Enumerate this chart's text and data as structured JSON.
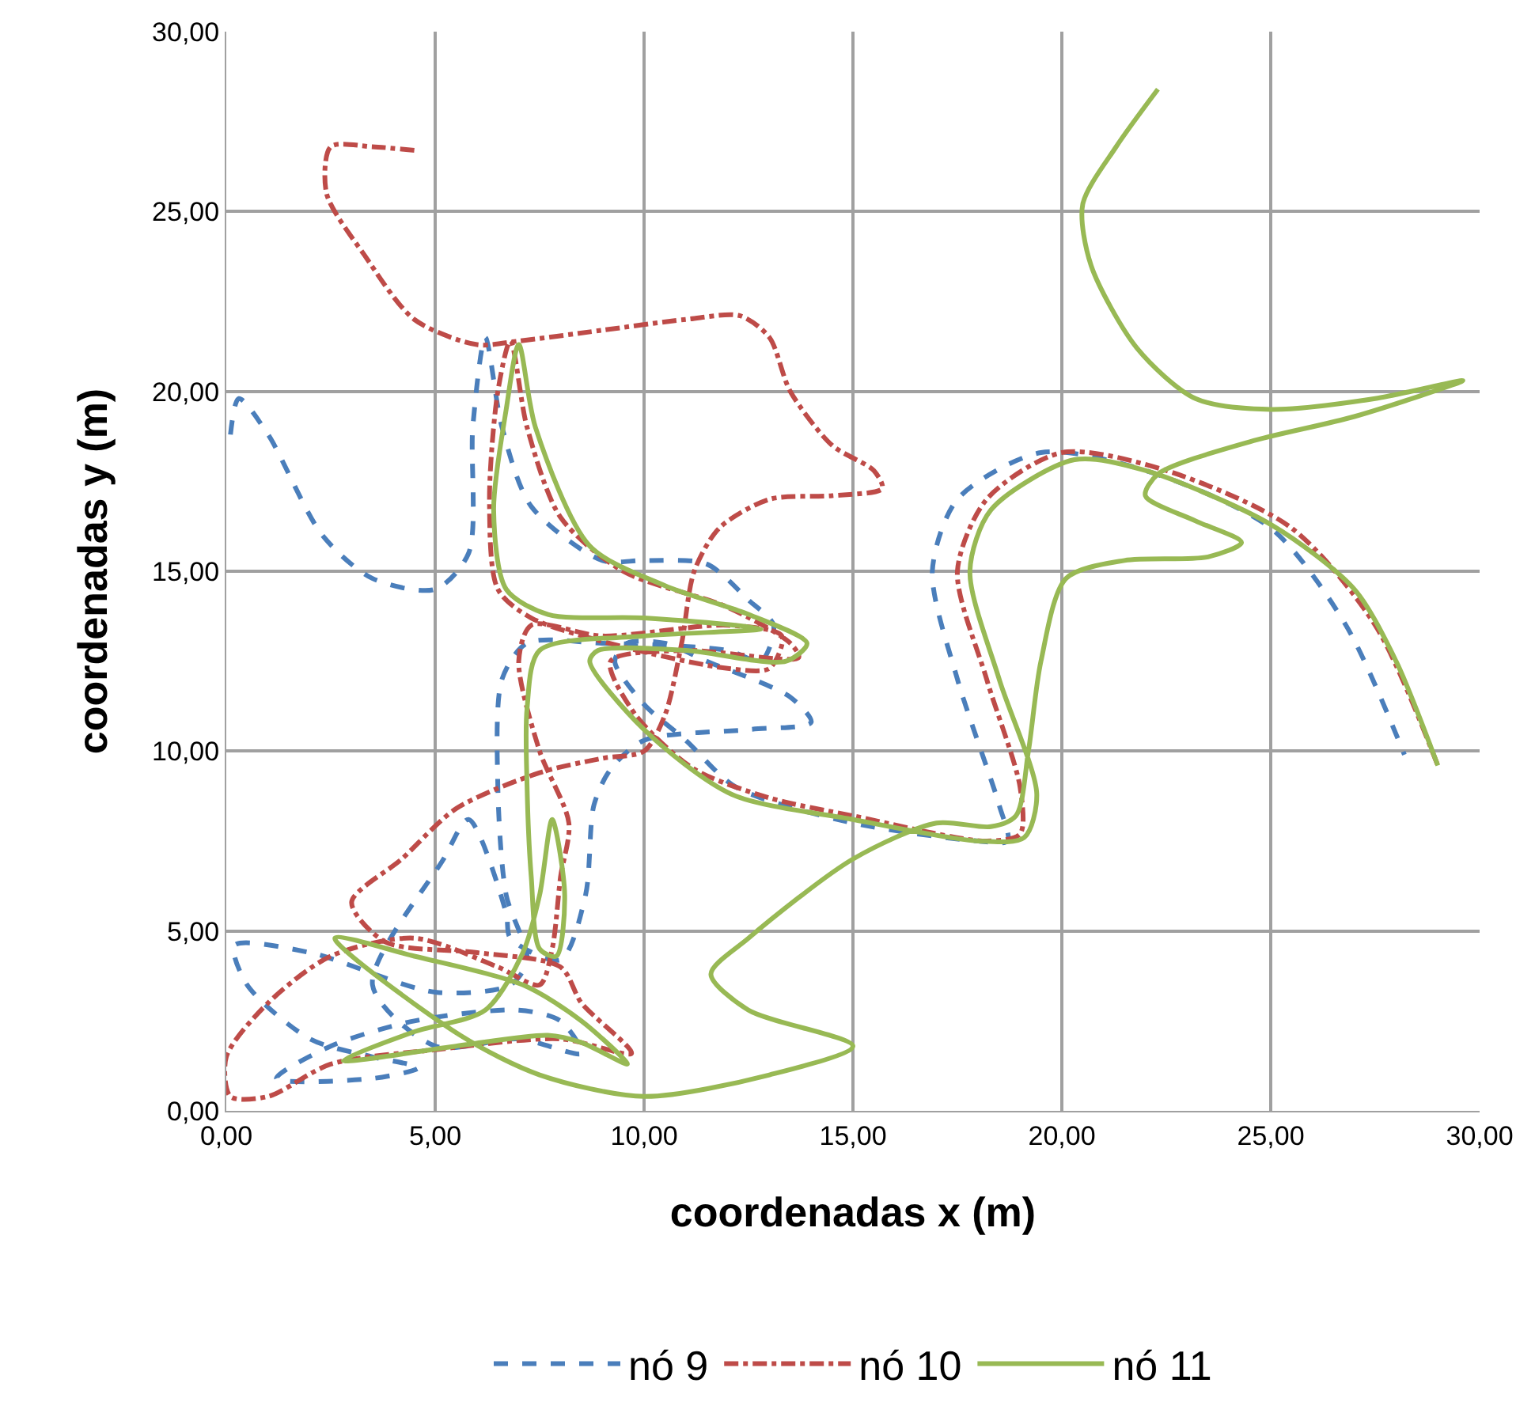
{
  "chart_data": {
    "type": "line",
    "xlabel": "coordenadas x (m)",
    "ylabel": "coordenadas y (m)",
    "xlim": [
      0,
      30
    ],
    "ylim": [
      0,
      30
    ],
    "xticks": [
      {
        "value": 0,
        "label": "0,00"
      },
      {
        "value": 5,
        "label": "5,00"
      },
      {
        "value": 10,
        "label": "10,00"
      },
      {
        "value": 15,
        "label": "15,00"
      },
      {
        "value": 20,
        "label": "20,00"
      },
      {
        "value": 25,
        "label": "25,00"
      },
      {
        "value": 30,
        "label": "30,00"
      }
    ],
    "yticks": [
      {
        "value": 0,
        "label": "0,00"
      },
      {
        "value": 5,
        "label": "5,00"
      },
      {
        "value": 10,
        "label": "10,00"
      },
      {
        "value": 15,
        "label": "15,00"
      },
      {
        "value": 20,
        "label": "20,00"
      },
      {
        "value": 25,
        "label": "25,00"
      },
      {
        "value": 30,
        "label": "30,00"
      }
    ],
    "grid": true,
    "legend": "bottom",
    "marker": "none",
    "series": [
      {
        "name": "nó 9",
        "color": "#4a7ebb",
        "line_style": "dashed",
        "x": [
          0.1,
          0.3,
          1,
          2.3,
          3.5,
          5,
          5.8,
          5.9,
          6.2,
          6.6,
          7.3,
          9,
          10,
          11.5,
          12.5,
          13.1,
          12.8,
          12,
          9,
          7.2,
          6.6,
          6.5,
          6.7,
          7.2,
          6.8,
          5,
          2,
          0.2,
          0.5,
          2,
          3.5,
          4.6,
          3.5,
          1.2,
          2.5,
          4.5,
          7,
          8,
          8.5,
          7,
          5,
          3.5,
          5.2,
          5.8,
          6.7,
          6.8,
          8,
          8.6,
          8.8,
          9.2,
          10,
          12.5,
          14,
          13.5,
          11.5,
          10.5,
          9.6,
          9.3,
          10,
          11,
          12.2,
          15,
          18,
          18.7,
          18.5,
          17.5,
          16.9,
          17.5,
          19.5,
          22,
          25,
          26.8,
          28.2
        ],
        "values": [
          18.8,
          19.8,
          18.8,
          16,
          14.8,
          14.5,
          15.5,
          19,
          21.5,
          19,
          16.8,
          15.3,
          15.3,
          15.2,
          14.2,
          13.5,
          12.5,
          12.8,
          13,
          13,
          12,
          9,
          6,
          4.2,
          3.5,
          3.3,
          4.4,
          4.6,
          3.5,
          2,
          1.5,
          1.2,
          0.9,
          0.9,
          1.8,
          2.5,
          2.8,
          2.5,
          1.6,
          2,
          1.8,
          3.5,
          7,
          8.1,
          5.5,
          4.8,
          4.2,
          6,
          8.5,
          9.5,
          10.3,
          10.6,
          10.8,
          11.5,
          12.5,
          13,
          13,
          12.5,
          11.3,
          10.3,
          9,
          8,
          7.5,
          7.5,
          8.5,
          12,
          15,
          17,
          18.3,
          17.8,
          16.2,
          13.5,
          9.9
        ]
      },
      {
        "name": "nó 10",
        "color": "#be4b48",
        "line_style": "dashdot",
        "x": [
          4.5,
          3.5,
          2.5,
          2.4,
          3.3,
          4.5,
          6,
          7,
          9,
          11,
          12.3,
          13,
          13.5,
          14.5,
          15.5,
          15.7,
          14.5,
          13,
          11.8,
          11.2,
          10.9,
          10.5,
          10,
          9,
          7.5,
          5.5,
          4.2,
          3,
          3.8,
          6,
          8,
          8.5,
          9.7,
          8,
          5,
          2.5,
          1,
          0.1,
          0,
          1,
          2.5,
          4.5,
          6.5,
          7.5,
          7.8,
          8,
          8.2,
          7.5,
          7,
          7.3,
          9,
          12,
          13.3,
          13,
          12,
          9.5,
          7.3,
          6.5,
          6.3,
          6.5,
          6.8,
          7.2,
          8,
          9.5,
          12,
          13.5,
          13.7,
          11,
          9.2,
          9.8,
          11.2,
          13,
          15,
          18.2,
          19,
          19,
          18.2,
          17.5,
          18.2,
          20,
          22.5,
          25.5,
          27.5,
          29
        ],
        "values": [
          26.7,
          26.8,
          26.8,
          25.5,
          23.8,
          22,
          21.3,
          21.4,
          21.7,
          22,
          22.1,
          21.5,
          20,
          18.5,
          17.8,
          17.3,
          17.1,
          17,
          16.2,
          15,
          13,
          11,
          10,
          9.8,
          9.4,
          8.4,
          7,
          5.8,
          4.7,
          4.4,
          4,
          3,
          1.6,
          2,
          1.7,
          1.3,
          0.4,
          0.4,
          1.5,
          3,
          4.3,
          4.8,
          4,
          3.5,
          4.5,
          6.5,
          8,
          10,
          12.5,
          13.5,
          13.2,
          13.5,
          13.2,
          12.3,
          12.3,
          12.9,
          13.7,
          14.5,
          17,
          20,
          21.4,
          19,
          16.5,
          15,
          14,
          13,
          12.6,
          12.8,
          12.5,
          11,
          9.5,
          8.7,
          8.2,
          7.5,
          7.7,
          9,
          12,
          15,
          17,
          18.3,
          17.8,
          16.2,
          13.5,
          9.6
        ]
      },
      {
        "name": "nó 11",
        "color": "#98b954",
        "line_style": "solid",
        "x": [
          22.3,
          21.3,
          20.5,
          20.7,
          21.8,
          23.2,
          25,
          27.5,
          29.6,
          27,
          24.5,
          22.3,
          22,
          23.2,
          24.3,
          23.5,
          21.5,
          20.1,
          19.5,
          19.2,
          18.9,
          18.3,
          17,
          15,
          12.5,
          11.6,
          12.5,
          15,
          13,
          10,
          7.5,
          5.6,
          2.6,
          4.5,
          7.1,
          8.5,
          9.6,
          8.5,
          7.7,
          5.5,
          2.8,
          4.5,
          6.2,
          7.1,
          7.5,
          7.8,
          8.1,
          7.9,
          7.5,
          7.3,
          7.2,
          7.2,
          7.5,
          10,
          12.8,
          10,
          7.7,
          6.7,
          6.4,
          6.7,
          7,
          7.4,
          8.7,
          10.5,
          12.5,
          13.9,
          13.4,
          11,
          8.9,
          8.7,
          10,
          12.1,
          15,
          18,
          19.1,
          19.4,
          18.5,
          17.8,
          18.3,
          20.3,
          22,
          25,
          27,
          28,
          29
        ],
        "values": [
          28.4,
          26.8,
          25.2,
          23.5,
          21.2,
          19.8,
          19.5,
          19.8,
          20.3,
          19.3,
          18.6,
          17.7,
          17.1,
          16.4,
          15.8,
          15.4,
          15.3,
          14.8,
          12.5,
          10,
          8.2,
          7.9,
          8,
          7,
          4.8,
          3.8,
          2.8,
          1.8,
          1,
          0.4,
          1,
          2.1,
          4.8,
          4.3,
          3.5,
          2.5,
          1.3,
          1.9,
          2.1,
          1.8,
          1.4,
          2.2,
          2.8,
          4.4,
          6,
          8.1,
          6,
          4.3,
          4.5,
          6.5,
          9,
          11.2,
          12.8,
          13.2,
          13.4,
          13.7,
          13.8,
          14.5,
          16.7,
          19.5,
          21.3,
          19,
          15.7,
          14.6,
          13.8,
          13,
          12.5,
          12.8,
          12.8,
          12.5,
          10.6,
          8.8,
          8.1,
          7.5,
          7.6,
          8.8,
          12,
          15,
          16.7,
          18.1,
          17.8,
          16.3,
          14.5,
          12.5,
          9.6
        ]
      }
    ]
  }
}
